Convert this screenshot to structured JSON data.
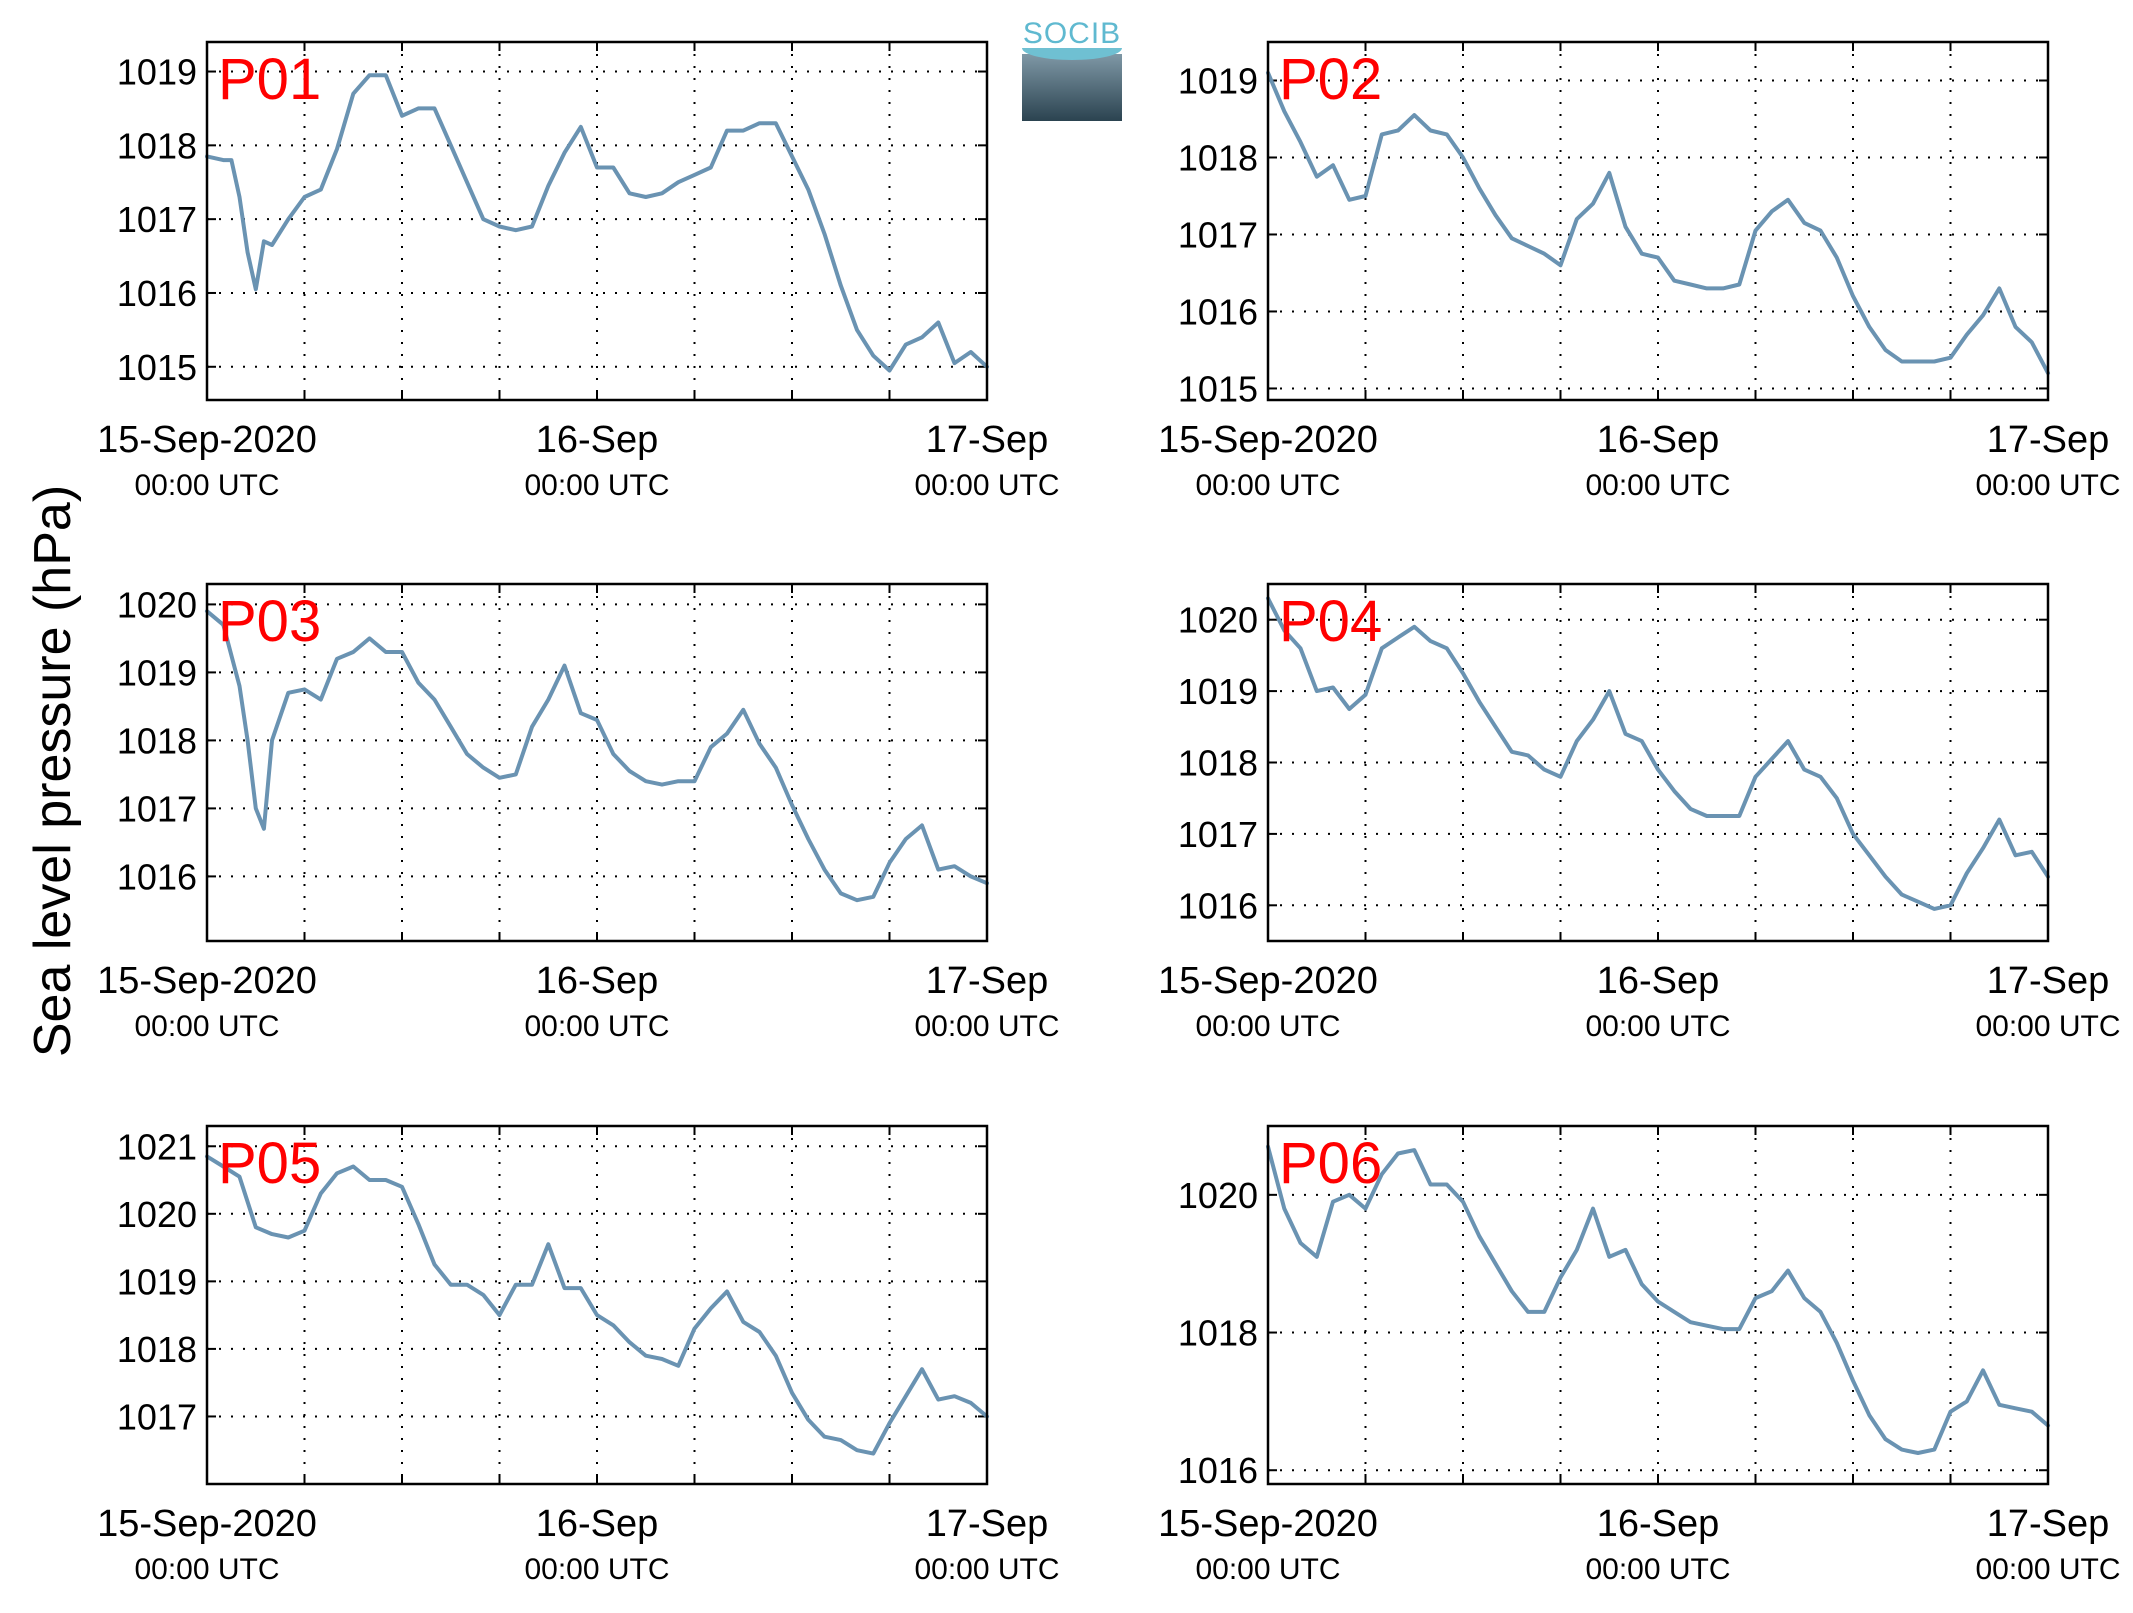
{
  "ylabel": "Sea level pressure (hPa)",
  "logo": {
    "text": "SOCIB"
  },
  "colors": {
    "line": "#6a93b2",
    "panel_label": "#ff0000",
    "axis": "#000000",
    "grid": "#000000"
  },
  "chart_data": [
    {
      "type": "line",
      "title": "P01",
      "xlim": [
        "2020-09-15 00:00",
        "2020-09-17 00:00"
      ],
      "xticks": [
        {
          "label": "15-Sep-2020",
          "sub": "00:00 UTC"
        },
        {
          "label": "16-Sep",
          "sub": "00:00 UTC"
        },
        {
          "label": "17-Sep",
          "sub": "00:00 UTC"
        }
      ],
      "ylim": [
        1014.55,
        1019.4
      ],
      "yticks": [
        1015,
        1016,
        1017,
        1018,
        1019
      ],
      "x_hours": [
        0,
        1,
        1.5,
        2,
        2.5,
        3,
        3.5,
        4,
        5,
        6,
        7,
        8,
        9,
        10,
        11,
        12,
        13,
        14,
        15,
        16,
        17,
        18,
        19,
        20,
        21,
        22,
        23,
        24,
        25,
        26,
        27,
        28,
        29,
        30,
        31,
        32,
        33,
        34,
        35,
        36,
        37,
        38,
        39,
        40,
        41,
        42,
        43,
        44,
        45,
        46,
        47,
        48
      ],
      "values": [
        1017.85,
        1017.8,
        1017.8,
        1017.3,
        1016.55,
        1016.05,
        1016.7,
        1016.65,
        1017.0,
        1017.3,
        1017.4,
        1017.95,
        1018.7,
        1018.95,
        1018.95,
        1018.4,
        1018.5,
        1018.5,
        1018.0,
        1017.5,
        1017.0,
        1016.9,
        1016.85,
        1016.9,
        1017.45,
        1017.9,
        1018.25,
        1017.7,
        1017.7,
        1017.35,
        1017.3,
        1017.35,
        1017.5,
        1017.6,
        1017.7,
        1018.2,
        1018.2,
        1018.3,
        1018.3,
        1017.85,
        1017.4,
        1016.8,
        1016.1,
        1015.5,
        1015.15,
        1014.95,
        1015.3,
        1015.4,
        1015.6,
        1015.05,
        1015.2,
        1015.0
      ]
    },
    {
      "type": "line",
      "title": "P02",
      "xlim": [
        "2020-09-15 00:00",
        "2020-09-17 00:00"
      ],
      "xticks": [
        {
          "label": "15-Sep-2020",
          "sub": "00:00 UTC"
        },
        {
          "label": "16-Sep",
          "sub": "00:00 UTC"
        },
        {
          "label": "17-Sep",
          "sub": "00:00 UTC"
        }
      ],
      "ylim": [
        1014.85,
        1019.5
      ],
      "yticks": [
        1015,
        1016,
        1017,
        1018,
        1019
      ],
      "x_hours": [
        0,
        1,
        2,
        3,
        4,
        5,
        6,
        7,
        8,
        9,
        10,
        11,
        12,
        13,
        14,
        15,
        16,
        17,
        18,
        19,
        20,
        21,
        22,
        23,
        24,
        25,
        26,
        27,
        28,
        29,
        30,
        31,
        32,
        33,
        34,
        35,
        36,
        37,
        38,
        39,
        40,
        41,
        42,
        43,
        44,
        45,
        46,
        47,
        48
      ],
      "values": [
        1019.1,
        1018.6,
        1018.2,
        1017.75,
        1017.9,
        1017.45,
        1017.5,
        1018.3,
        1018.35,
        1018.55,
        1018.35,
        1018.3,
        1018.0,
        1017.6,
        1017.25,
        1016.95,
        1016.85,
        1016.75,
        1016.6,
        1017.2,
        1017.4,
        1017.8,
        1017.1,
        1016.75,
        1016.7,
        1016.4,
        1016.35,
        1016.3,
        1016.3,
        1016.35,
        1017.05,
        1017.3,
        1017.45,
        1017.15,
        1017.05,
        1016.7,
        1016.2,
        1015.8,
        1015.5,
        1015.35,
        1015.35,
        1015.35,
        1015.4,
        1015.7,
        1015.95,
        1016.3,
        1015.8,
        1015.6,
        1015.2
      ]
    },
    {
      "type": "line",
      "title": "P03",
      "xlim": [
        "2020-09-15 00:00",
        "2020-09-17 00:00"
      ],
      "xticks": [
        {
          "label": "15-Sep-2020",
          "sub": "00:00 UTC"
        },
        {
          "label": "16-Sep",
          "sub": "00:00 UTC"
        },
        {
          "label": "17-Sep",
          "sub": "00:00 UTC"
        }
      ],
      "ylim": [
        1015.05,
        1020.3
      ],
      "yticks": [
        1016,
        1017,
        1018,
        1019,
        1020
      ],
      "x_hours": [
        0,
        1,
        2,
        2.5,
        3,
        3.5,
        4,
        5,
        6,
        7,
        8,
        9,
        10,
        11,
        12,
        13,
        14,
        15,
        16,
        17,
        18,
        19,
        20,
        21,
        22,
        23,
        24,
        25,
        26,
        27,
        28,
        29,
        30,
        31,
        32,
        33,
        34,
        35,
        36,
        37,
        38,
        39,
        40,
        41,
        42,
        43,
        44,
        45,
        46,
        47,
        48
      ],
      "values": [
        1019.9,
        1019.7,
        1018.8,
        1018.0,
        1017.0,
        1016.7,
        1018.0,
        1018.7,
        1018.75,
        1018.6,
        1019.2,
        1019.3,
        1019.5,
        1019.3,
        1019.3,
        1018.85,
        1018.6,
        1018.2,
        1017.8,
        1017.6,
        1017.45,
        1017.5,
        1018.2,
        1018.6,
        1019.1,
        1018.4,
        1018.3,
        1017.8,
        1017.55,
        1017.4,
        1017.35,
        1017.4,
        1017.4,
        1017.9,
        1018.1,
        1018.45,
        1017.95,
        1017.6,
        1017.05,
        1016.55,
        1016.1,
        1015.75,
        1015.65,
        1015.7,
        1016.2,
        1016.55,
        1016.75,
        1016.1,
        1016.15,
        1016.0,
        1015.9
      ]
    },
    {
      "type": "line",
      "title": "P04",
      "xlim": [
        "2020-09-15 00:00",
        "2020-09-17 00:00"
      ],
      "xticks": [
        {
          "label": "15-Sep-2020",
          "sub": "00:00 UTC"
        },
        {
          "label": "16-Sep",
          "sub": "00:00 UTC"
        },
        {
          "label": "17-Sep",
          "sub": "00:00 UTC"
        }
      ],
      "ylim": [
        1015.5,
        1020.5
      ],
      "yticks": [
        1016,
        1017,
        1018,
        1019,
        1020
      ],
      "x_hours": [
        0,
        1,
        2,
        3,
        4,
        5,
        6,
        7,
        8,
        9,
        10,
        11,
        12,
        13,
        14,
        15,
        16,
        17,
        18,
        19,
        20,
        21,
        22,
        23,
        24,
        25,
        26,
        27,
        28,
        29,
        30,
        31,
        32,
        33,
        34,
        35,
        36,
        37,
        38,
        39,
        40,
        41,
        42,
        43,
        44,
        45,
        46,
        47,
        48
      ],
      "values": [
        1020.3,
        1019.85,
        1019.6,
        1019.0,
        1019.05,
        1018.75,
        1018.95,
        1019.6,
        1019.75,
        1019.9,
        1019.7,
        1019.6,
        1019.25,
        1018.85,
        1018.5,
        1018.15,
        1018.1,
        1017.9,
        1017.8,
        1018.3,
        1018.6,
        1019.0,
        1018.4,
        1018.3,
        1017.9,
        1017.6,
        1017.35,
        1017.25,
        1017.25,
        1017.25,
        1017.8,
        1018.05,
        1018.3,
        1017.9,
        1017.8,
        1017.5,
        1017.0,
        1016.7,
        1016.4,
        1016.15,
        1016.05,
        1015.95,
        1016.0,
        1016.45,
        1016.8,
        1017.2,
        1016.7,
        1016.75,
        1016.4
      ]
    },
    {
      "type": "line",
      "title": "P05",
      "xlim": [
        "2020-09-15 00:00",
        "2020-09-17 00:00"
      ],
      "xticks": [
        {
          "label": "15-Sep-2020",
          "sub": "00:00 UTC"
        },
        {
          "label": "16-Sep",
          "sub": "00:00 UTC"
        },
        {
          "label": "17-Sep",
          "sub": "00:00 UTC"
        }
      ],
      "ylim": [
        1016.0,
        1021.3
      ],
      "yticks": [
        1017,
        1018,
        1019,
        1020,
        1021
      ],
      "x_hours": [
        0,
        1,
        2,
        3,
        4,
        5,
        6,
        7,
        8,
        9,
        10,
        11,
        12,
        13,
        14,
        15,
        16,
        17,
        18,
        19,
        20,
        21,
        22,
        23,
        24,
        25,
        26,
        27,
        28,
        29,
        30,
        31,
        32,
        33,
        34,
        35,
        36,
        37,
        38,
        39,
        40,
        41,
        42,
        43,
        44,
        45,
        46,
        47,
        48
      ],
      "values": [
        1020.85,
        1020.7,
        1020.55,
        1019.8,
        1019.7,
        1019.65,
        1019.75,
        1020.3,
        1020.6,
        1020.7,
        1020.5,
        1020.5,
        1020.4,
        1019.85,
        1019.25,
        1018.95,
        1018.95,
        1018.8,
        1018.5,
        1018.95,
        1018.95,
        1019.55,
        1018.9,
        1018.9,
        1018.5,
        1018.35,
        1018.1,
        1017.9,
        1017.85,
        1017.75,
        1018.3,
        1018.6,
        1018.85,
        1018.4,
        1018.25,
        1017.9,
        1017.35,
        1016.95,
        1016.7,
        1016.65,
        1016.5,
        1016.45,
        1016.9,
        1017.3,
        1017.7,
        1017.25,
        1017.3,
        1017.2,
        1017.0
      ]
    },
    {
      "type": "line",
      "title": "P06",
      "xlim": [
        "2020-09-15 00:00",
        "2020-09-17 00:00"
      ],
      "xticks": [
        {
          "label": "15-Sep-2020",
          "sub": "00:00 UTC"
        },
        {
          "label": "16-Sep",
          "sub": "00:00 UTC"
        },
        {
          "label": "17-Sep",
          "sub": "00:00 UTC"
        }
      ],
      "ylim": [
        1015.8,
        1021.0
      ],
      "yticks": [
        1016,
        1018,
        1020
      ],
      "x_hours": [
        0,
        1,
        2,
        3,
        4,
        5,
        6,
        7,
        8,
        9,
        10,
        11,
        12,
        13,
        14,
        15,
        16,
        17,
        18,
        19,
        20,
        21,
        22,
        23,
        24,
        25,
        26,
        27,
        28,
        29,
        30,
        31,
        32,
        33,
        34,
        35,
        36,
        37,
        38,
        39,
        40,
        41,
        42,
        43,
        44,
        45,
        46,
        47,
        48
      ],
      "values": [
        1020.7,
        1019.8,
        1019.3,
        1019.1,
        1019.9,
        1020.0,
        1019.8,
        1020.3,
        1020.6,
        1020.65,
        1020.15,
        1020.15,
        1019.9,
        1019.4,
        1019.0,
        1018.6,
        1018.3,
        1018.3,
        1018.8,
        1019.2,
        1019.8,
        1019.1,
        1019.2,
        1018.7,
        1018.45,
        1018.3,
        1018.15,
        1018.1,
        1018.05,
        1018.05,
        1018.5,
        1018.6,
        1018.9,
        1018.5,
        1018.3,
        1017.85,
        1017.3,
        1016.8,
        1016.45,
        1016.3,
        1016.25,
        1016.3,
        1016.85,
        1017.0,
        1017.45,
        1016.95,
        1016.9,
        1016.85,
        1016.65
      ]
    }
  ]
}
